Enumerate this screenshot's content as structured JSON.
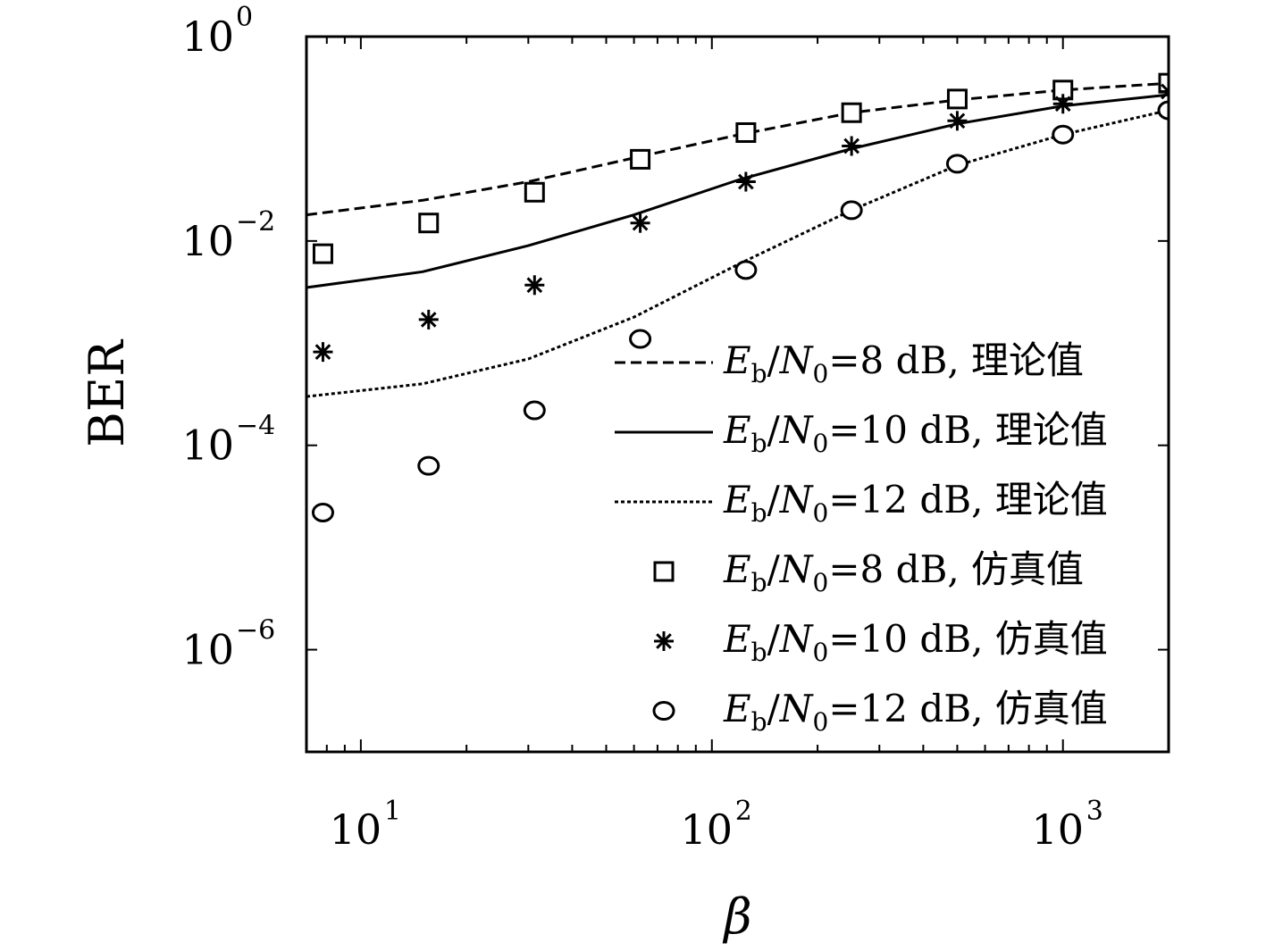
{
  "chart_data": {
    "type": "line",
    "title": "",
    "xlabel": "β",
    "ylabel": "BER",
    "x_scale": "log",
    "y_scale": "log",
    "xlim": [
      7,
      2000
    ],
    "ylim": [
      1e-07,
      1
    ],
    "x_ticks": [
      {
        "value": 10,
        "base": "10",
        "exp": "1"
      },
      {
        "value": 100,
        "base": "10",
        "exp": "2"
      },
      {
        "value": 1000,
        "base": "10",
        "exp": "3"
      }
    ],
    "y_ticks": [
      {
        "value": 1,
        "base": "10",
        "exp": "0"
      },
      {
        "value": 0.01,
        "base": "10",
        "exp": "−2"
      },
      {
        "value": 0.0001,
        "base": "10",
        "exp": "−4"
      },
      {
        "value": 1e-06,
        "base": "10",
        "exp": "−6"
      }
    ],
    "grid": false,
    "legend_position": "bottom-right",
    "series": [
      {
        "name": "Eb/N0=8 dB, 理论值",
        "legend": {
          "e": "E",
          "b": "b",
          "slash": "/",
          "n": "N",
          "zero": "0",
          "rest": "=8 dB, 理论值"
        },
        "kind": "line",
        "dash": "dashed",
        "color": "#000000",
        "x": [
          7,
          15,
          30,
          60,
          120,
          250,
          500,
          1000,
          2000
        ],
        "y": [
          0.018,
          0.025,
          0.038,
          0.065,
          0.11,
          0.18,
          0.24,
          0.3,
          0.35
        ]
      },
      {
        "name": "Eb/N0=10 dB, 理论值",
        "legend": {
          "e": "E",
          "b": "b",
          "slash": "/",
          "n": "N",
          "zero": "0",
          "rest": "=10 dB, 理论值"
        },
        "kind": "line",
        "dash": "solid",
        "color": "#000000",
        "x": [
          7,
          15,
          30,
          60,
          120,
          250,
          500,
          1000,
          2000
        ],
        "y": [
          0.0035,
          0.005,
          0.009,
          0.018,
          0.04,
          0.08,
          0.14,
          0.21,
          0.27
        ]
      },
      {
        "name": "Eb/N0=12 dB, 理论值",
        "legend": {
          "e": "E",
          "b": "b",
          "slash": "/",
          "n": "N",
          "zero": "0",
          "rest": "=12 dB, 理论值"
        },
        "kind": "line",
        "dash": "dotted",
        "color": "#000000",
        "x": [
          7,
          15,
          30,
          60,
          120,
          250,
          500,
          1000,
          2000
        ],
        "y": [
          0.0003,
          0.0004,
          0.0007,
          0.0018,
          0.006,
          0.02,
          0.055,
          0.11,
          0.19
        ]
      },
      {
        "name": "Eb/N0=8 dB, 仿真值",
        "legend": {
          "e": "E",
          "b": "b",
          "slash": "/",
          "n": "N",
          "zero": "0",
          "rest": "=8 dB, 仿真值"
        },
        "kind": "marker",
        "marker": "square",
        "color": "#000000",
        "x": [
          7.8,
          15.6,
          31.25,
          62.5,
          125,
          250,
          500,
          1000,
          2000
        ],
        "y": [
          0.0075,
          0.015,
          0.03,
          0.063,
          0.115,
          0.18,
          0.245,
          0.3,
          0.35
        ]
      },
      {
        "name": "Eb/N0=10 dB, 仿真值",
        "legend": {
          "e": "E",
          "b": "b",
          "slash": "/",
          "n": "N",
          "zero": "0",
          "rest": "=10 dB, 仿真值"
        },
        "kind": "marker",
        "marker": "asterisk",
        "color": "#000000",
        "x": [
          7.8,
          15.6,
          31.25,
          62.5,
          125,
          250,
          500,
          1000,
          2000
        ],
        "y": [
          0.00082,
          0.0017,
          0.0037,
          0.015,
          0.038,
          0.085,
          0.15,
          0.22,
          0.29
        ]
      },
      {
        "name": "Eb/N0=12 dB, 仿真值",
        "legend": {
          "e": "E",
          "b": "b",
          "slash": "/",
          "n": "N",
          "zero": "0",
          "rest": "=12 dB, 仿真值"
        },
        "kind": "marker",
        "marker": "circle",
        "color": "#000000",
        "x": [
          7.8,
          15.6,
          31.25,
          62.5,
          125,
          250,
          500,
          1000,
          2000
        ],
        "y": [
          2.2e-05,
          6.3e-05,
          0.00022,
          0.0011,
          0.0052,
          0.02,
          0.057,
          0.11,
          0.19
        ]
      }
    ]
  }
}
